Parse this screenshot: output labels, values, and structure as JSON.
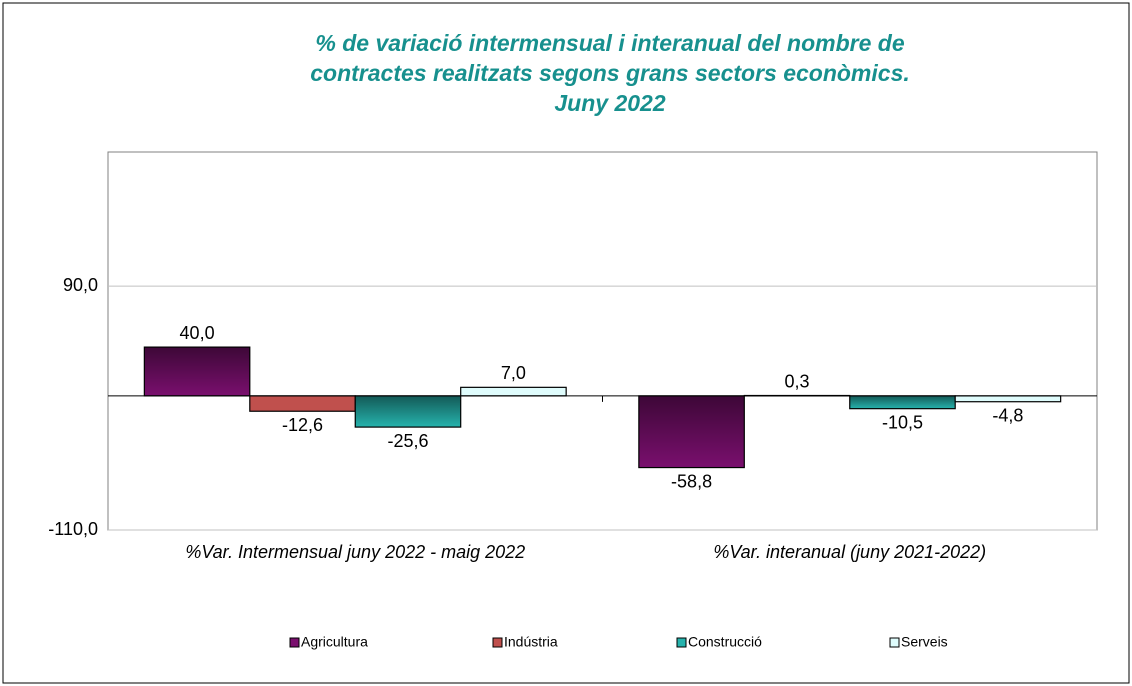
{
  "chart_data": {
    "type": "bar",
    "title": [
      "% de variació intermensual i interanual del nombre de",
      "contractes realitzats segons grans sectors econòmics.",
      "Juny 2022"
    ],
    "categories": [
      "%Var. Intermensual juny 2022 - maig 2022",
      "%Var. interanual (juny 2021-2022)"
    ],
    "series": [
      {
        "name": "Agricultura",
        "color": "#7a0f6e",
        "values": [
          40.0,
          -58.8
        ],
        "value_labels": [
          "40,0",
          "-58,8"
        ]
      },
      {
        "name": "Indústria",
        "color": "#c0504d",
        "values": [
          -12.6,
          0.3
        ],
        "value_labels": [
          "-12,6",
          "0,3"
        ]
      },
      {
        "name": "Construcció",
        "color": "#26b3ad",
        "values": [
          -25.6,
          -10.5
        ],
        "value_labels": [
          "-25,6",
          "-10,5"
        ]
      },
      {
        "name": "Serveis",
        "color": "#dffcfc",
        "values": [
          7.0,
          -4.8
        ],
        "value_labels": [
          "7,0",
          "-4,8"
        ]
      }
    ],
    "ylim": [
      -110,
      200
    ],
    "yticks": [
      {
        "value": -110,
        "label": "-110,0"
      },
      {
        "value": 90,
        "label": "90,0"
      }
    ],
    "grid": true,
    "legend": "bottom"
  }
}
